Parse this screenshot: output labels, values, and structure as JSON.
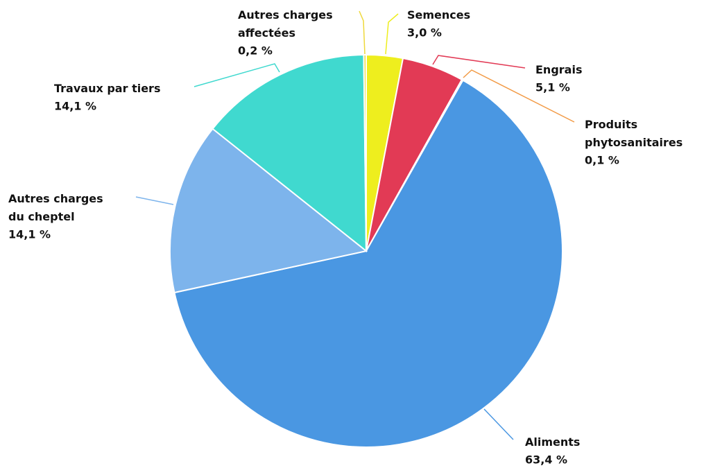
{
  "chart_data": {
    "type": "pie",
    "categories": [
      "Semences",
      "Engrais",
      "Produits\nphytosanitaires",
      "Aliments",
      "Autres charges\ndu cheptel",
      "Travaux par tiers",
      "Autres charges\naffectées"
    ],
    "values": [
      3,
      5.1,
      0.1,
      63.4,
      14.1,
      14.1,
      0.2
    ],
    "value_labels": [
      "3,0 %",
      "5,1 %",
      "0,1 %",
      "63,4 %",
      "14,1 %",
      "14,1 %",
      "0,2 %"
    ],
    "colors": [
      "#eeee1e",
      "#e23a55",
      "#f29a45",
      "#4a97e2",
      "#7db4ec",
      "#40d9cf",
      "#eed83a"
    ]
  }
}
